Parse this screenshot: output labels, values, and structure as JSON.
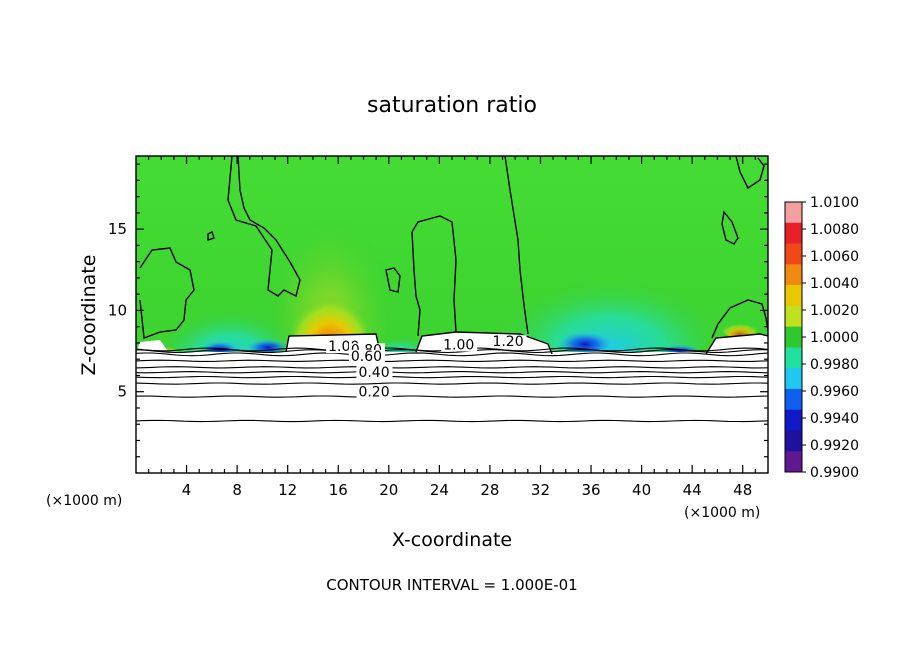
{
  "chart_data": {
    "type": "heatmap",
    "title": "saturation ratio",
    "xlabel": "X-coordinate",
    "ylabel": "Z-coordinate",
    "x_unit_left": "(×1000 m)",
    "x_unit_right": "(×1000 m)",
    "xlim": [
      0,
      50
    ],
    "ylim": [
      0,
      19.5
    ],
    "x_ticks": [
      4,
      8,
      12,
      16,
      20,
      24,
      28,
      32,
      36,
      40,
      44,
      48
    ],
    "y_ticks": [
      5,
      10,
      15
    ],
    "footer": "CONTOUR INTERVAL = 1.000E-01",
    "colorbar": {
      "labels": [
        "1.0100",
        "1.0080",
        "1.0060",
        "1.0040",
        "1.0020",
        "1.0000",
        "0.9980",
        "0.9960",
        "0.9940",
        "0.9920",
        "0.9900"
      ],
      "colors": [
        "#f4a0a0",
        "#e8202a",
        "#f04818",
        "#f08a10",
        "#e8c800",
        "#c0e020",
        "#30c830",
        "#20e0a0",
        "#20c8f0",
        "#1060f0",
        "#1018c8",
        "#2010a0",
        "#601890"
      ]
    },
    "contour_labels": [
      {
        "text": "1.00",
        "x": 15.2,
        "y": 7.5
      },
      {
        "text": "0.80",
        "x": 17.0,
        "y": 7.3
      },
      {
        "text": "0.60",
        "x": 17.0,
        "y": 6.9
      },
      {
        "text": "0.40",
        "x": 17.6,
        "y": 5.9
      },
      {
        "text": "0.20",
        "x": 17.6,
        "y": 4.7
      },
      {
        "text": "1.00",
        "x": 24.3,
        "y": 7.6
      },
      {
        "text": "1.20",
        "x": 28.2,
        "y": 7.8
      }
    ],
    "contour_levels_z": [
      3.2,
      4.7,
      5.5,
      5.9,
      6.2,
      6.5,
      6.9,
      7.3,
      7.5,
      7.6
    ],
    "max_region": {
      "x": [
        13,
        19
      ],
      "z": [
        9,
        12
      ]
    }
  }
}
